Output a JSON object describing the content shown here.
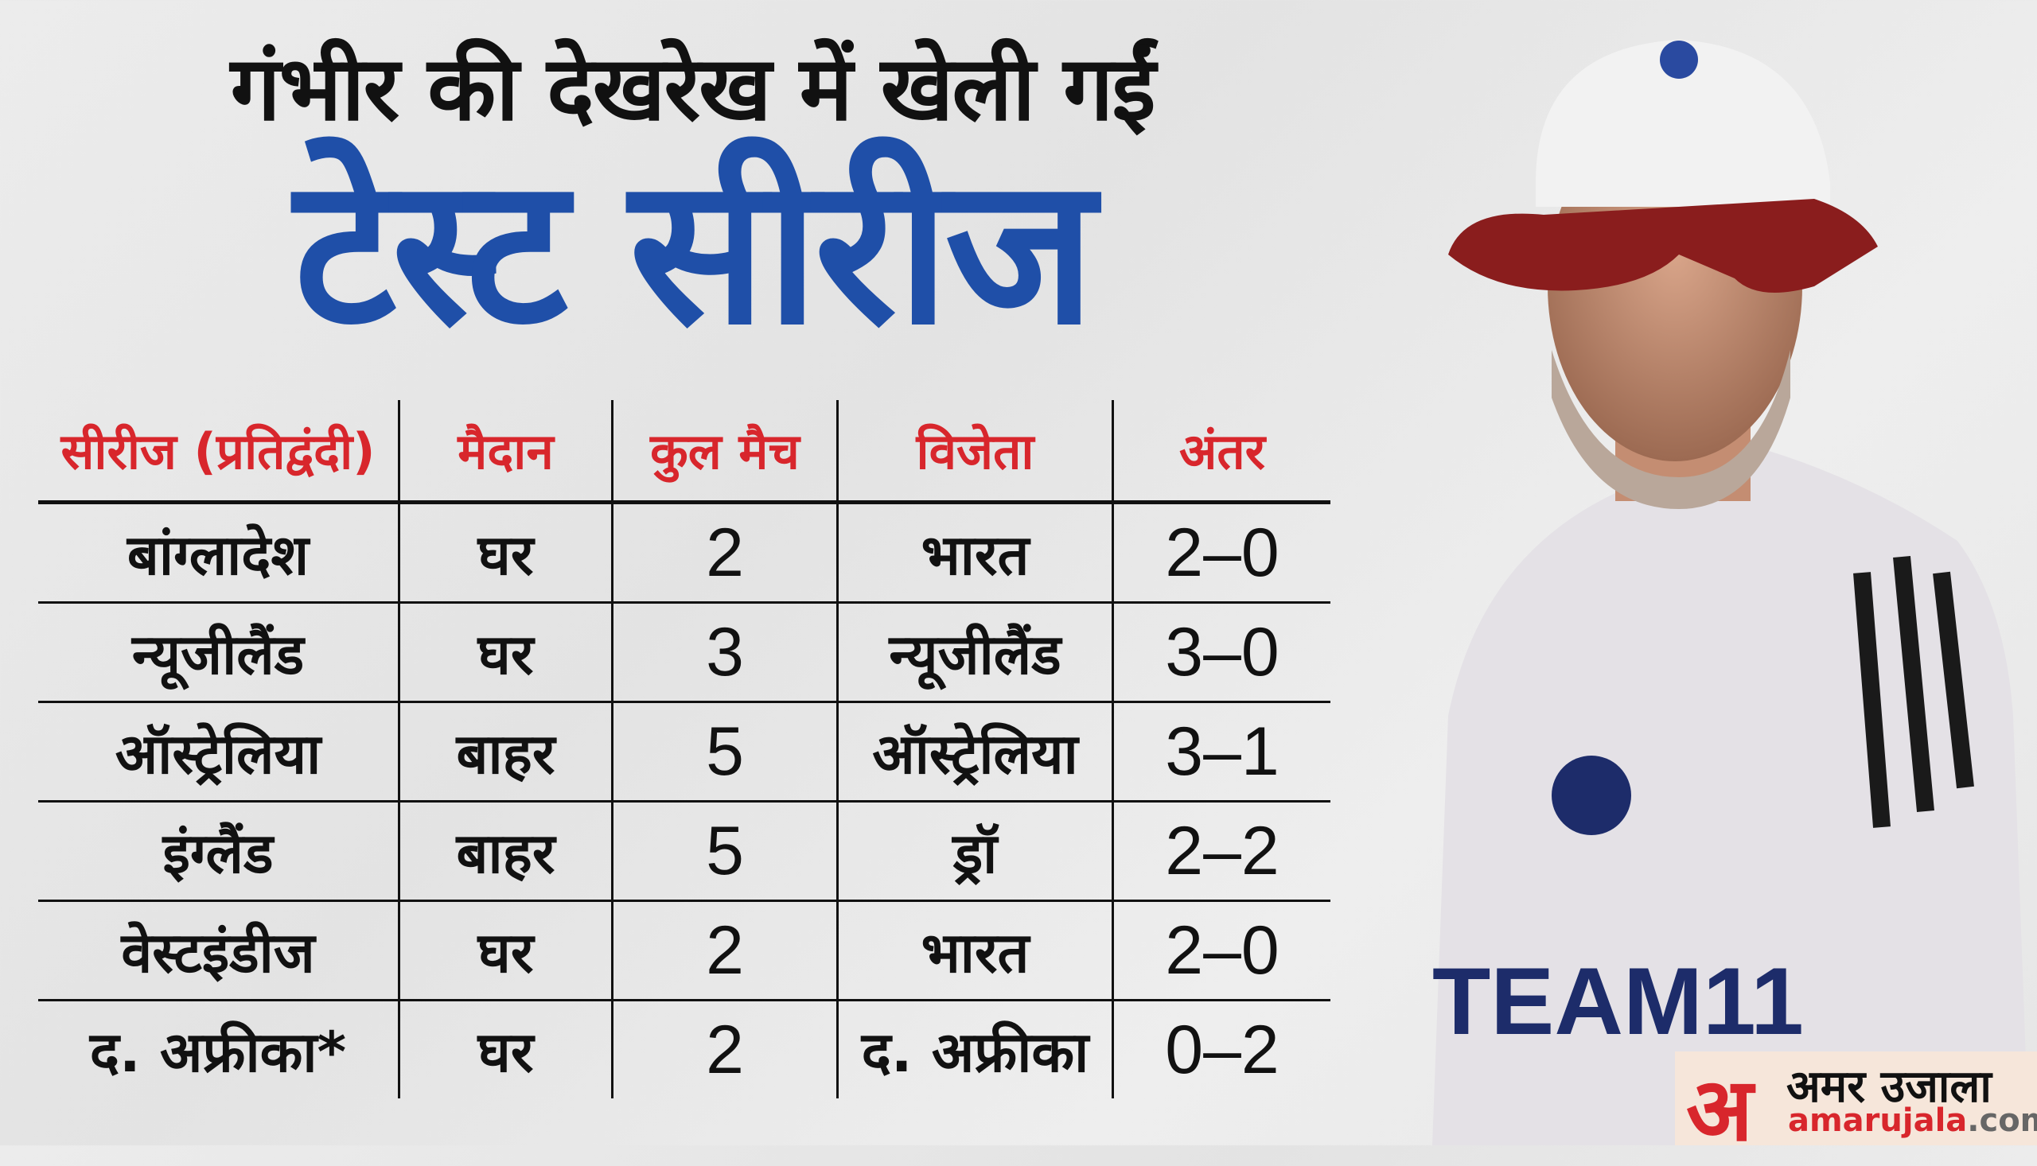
{
  "title_line1": "गंभीर की देखरेख में खेली गईं",
  "title_line2": "टेस्ट सीरीज",
  "table": {
    "headers": [
      "सीरीज (प्रतिद्वंदी)",
      "मैदान",
      "कुल मैच",
      "विजेता",
      "अंतर"
    ],
    "rows": [
      [
        "बांग्लादेश",
        "घर",
        "2",
        "भारत",
        "2–0"
      ],
      [
        "न्यूजीलैंड",
        "घर",
        "3",
        "न्यूजीलैंड",
        "3–0"
      ],
      [
        "ऑस्ट्रेलिया",
        "बाहर",
        "5",
        "ऑस्ट्रेलिया",
        "3–1"
      ],
      [
        "इंग्लैंड",
        "बाहर",
        "5",
        "ड्रॉ",
        "2–2"
      ],
      [
        "वेस्टइंडीज",
        "घर",
        "2",
        "भारत",
        "2–0"
      ],
      [
        "द. अफ्रीका*",
        "घर",
        "2",
        "द. अफ्रीका",
        "0–2"
      ]
    ]
  },
  "photo": {
    "shirt_text": "TEAM11"
  },
  "logo": {
    "mark": "अ",
    "name_hindi": "अमर उजाला",
    "url_main": "amarujala",
    "url_tld": ".com"
  },
  "colors": {
    "title_blue": "#1f4fa8",
    "header_red": "#d8262c"
  }
}
